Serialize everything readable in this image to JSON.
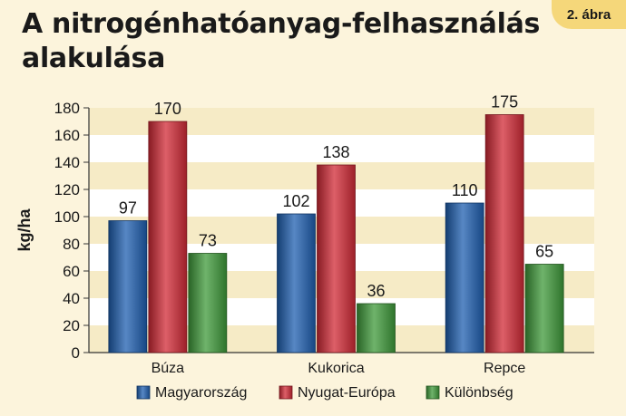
{
  "figure": {
    "title": "A nitrogénhatóanyag-felhasználás alakulása",
    "badge": "2. ábra"
  },
  "colors": {
    "page_background": "#fcf4dc",
    "plot_band_light": "#ffffff",
    "plot_band_dark": "#f6ebc6",
    "badge": "#f5d77a"
  },
  "chart_data": {
    "type": "bar",
    "title": "A nitrogénhatóanyag-felhasználás alakulása",
    "xlabel": "",
    "ylabel": "kg/ha",
    "categories": [
      "Búza",
      "Kukorica",
      "Repce"
    ],
    "series": [
      {
        "name": "Magyarország",
        "values": [
          97,
          102,
          110
        ],
        "color": "#1f5fb0"
      },
      {
        "name": "Nyugat-Európa",
        "values": [
          170,
          138,
          175
        ],
        "color": "#d12a36"
      },
      {
        "name": "Különbség",
        "values": [
          73,
          36,
          65
        ],
        "color": "#3f9a3a"
      }
    ],
    "ylim": [
      0,
      180
    ],
    "yticks": [
      0,
      20,
      40,
      60,
      80,
      100,
      120,
      140,
      160,
      180
    ],
    "data_labels": true,
    "grid": "alternating horizontal bands",
    "legend_position": "bottom"
  }
}
